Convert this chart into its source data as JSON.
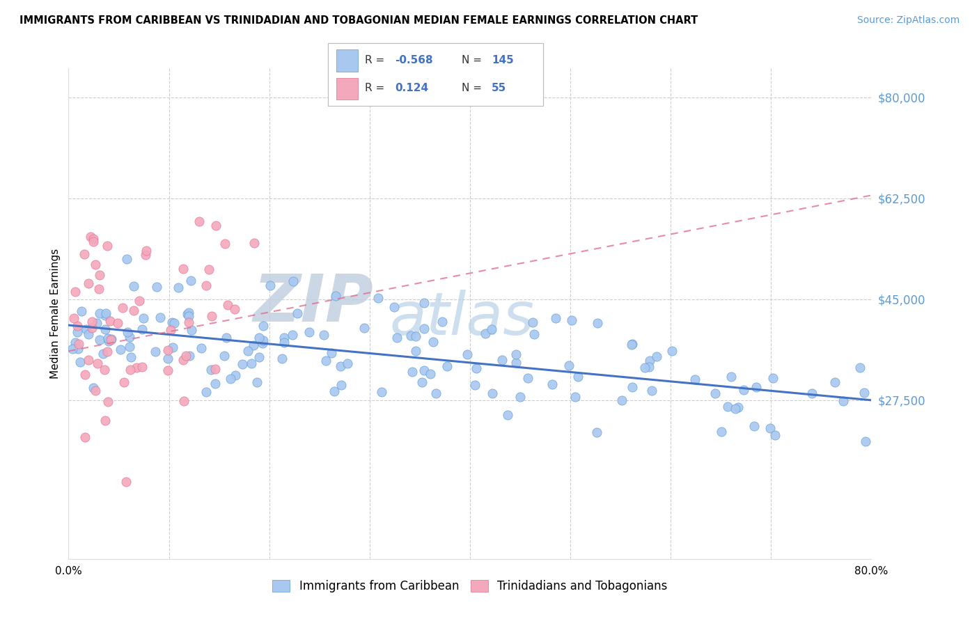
{
  "title": "IMMIGRANTS FROM CARIBBEAN VS TRINIDADIAN AND TOBAGONIAN MEDIAN FEMALE EARNINGS CORRELATION CHART",
  "source": "Source: ZipAtlas.com",
  "ylabel": "Median Female Earnings",
  "xlim": [
    0.0,
    0.8
  ],
  "ylim": [
    0,
    85000
  ],
  "yticks": [
    0,
    27500,
    45000,
    62500,
    80000
  ],
  "ytick_labels": [
    "",
    "$27,500",
    "$45,000",
    "$62,500",
    "$80,000"
  ],
  "xticks": [
    0.0,
    0.1,
    0.2,
    0.3,
    0.4,
    0.5,
    0.6,
    0.7,
    0.8
  ],
  "xtick_labels": [
    "0.0%",
    "",
    "",
    "",
    "",
    "",
    "",
    "",
    "80.0%"
  ],
  "blue_fill": "#A8C8F0",
  "pink_fill": "#F4A8BC",
  "blue_edge": "#5B9BD5",
  "pink_edge": "#E07090",
  "blue_line_color": "#4472C4",
  "pink_line_color": "#E07090",
  "R_blue": -0.568,
  "N_blue": 145,
  "R_pink": 0.124,
  "N_pink": 55,
  "legend_label_blue": "Immigrants from Caribbean",
  "legend_label_pink": "Trinidadians and Tobagonians",
  "watermark_zip": "ZIP",
  "watermark_atlas": "atlas",
  "axis_label_color": "#5B9BD5",
  "blue_trend_x0": 0.0,
  "blue_trend_y0": 40500,
  "blue_trend_x1": 0.8,
  "blue_trend_y1": 27500,
  "pink_trend_x0": 0.0,
  "pink_trend_y0": 36000,
  "pink_trend_x1": 0.8,
  "pink_trend_y1": 63000
}
